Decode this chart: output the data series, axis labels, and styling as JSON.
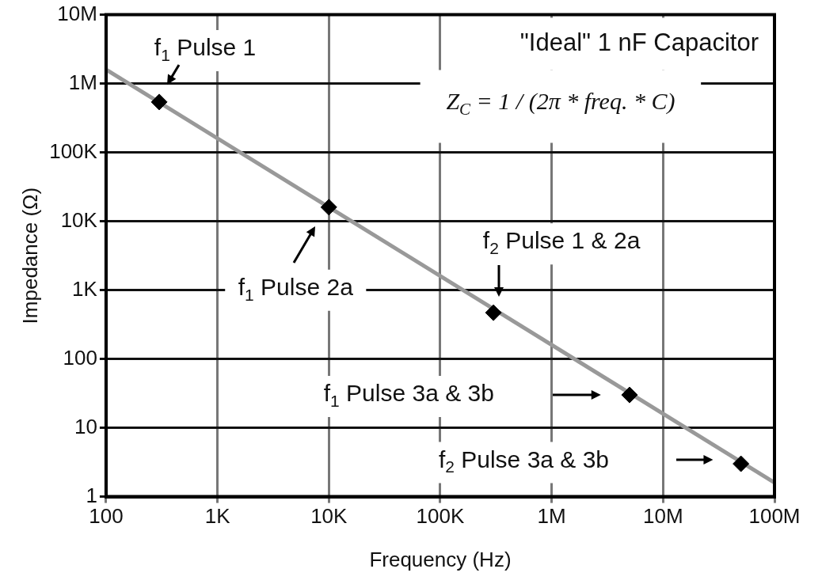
{
  "chart_data": {
    "type": "line",
    "title": "\"Ideal\" 1 nF Capacitor",
    "xlabel": "Frequency (Hz)",
    "ylabel": "Impedance (Ω)",
    "log": "xy",
    "grid": true,
    "legend": false,
    "xlim": [
      100,
      100000000
    ],
    "ylim": [
      1,
      10000000
    ],
    "xticks": [
      100,
      {
        "value": 1000,
        "label": "1K"
      },
      {
        "value": 10000,
        "label": "10K"
      },
      {
        "value": 100000,
        "label": "100K"
      },
      {
        "value": 1000000,
        "label": "1M"
      },
      {
        "value": 10000000,
        "label": "10M"
      },
      {
        "value": 100000000,
        "label": "100M"
      }
    ],
    "yticks": [
      1,
      10,
      100,
      {
        "value": 1000,
        "label": "1K"
      },
      {
        "value": 10000,
        "label": "10K"
      },
      {
        "value": 100000,
        "label": "100K"
      },
      {
        "value": 1000000,
        "label": "1M"
      },
      {
        "value": 10000000,
        "label": "10M"
      }
    ],
    "series": [
      {
        "type": "line",
        "color": "#999999",
        "marker": "none",
        "line_style": "solid",
        "x": [
          100,
          100000000
        ],
        "values": [
          1600000,
          1.6
        ]
      },
      {
        "type": "scatter",
        "color": "#000000",
        "marker": "diamond",
        "x": [
          300,
          10000,
          300000,
          5000000,
          50000000
        ],
        "values": [
          540000,
          16000,
          470,
          30,
          3
        ]
      }
    ],
    "annotations": [
      "Z$_{C}$ = 1 / (2π * freq. * C)",
      {
        "text": "f$_{1}$ Pulse 1",
        "x": 300,
        "y": 540000
      },
      {
        "text": "f$_{1}$ Pulse 2a",
        "x": 10000,
        "y": 16000
      },
      {
        "text": "f$_{2}$ Pulse 1 & 2a",
        "x": 300000,
        "y": 470
      },
      "f$_{1}$ Pulse 3a & 3b",
      "f$_{2}$ Pulse 3a & 3b"
    ]
  }
}
